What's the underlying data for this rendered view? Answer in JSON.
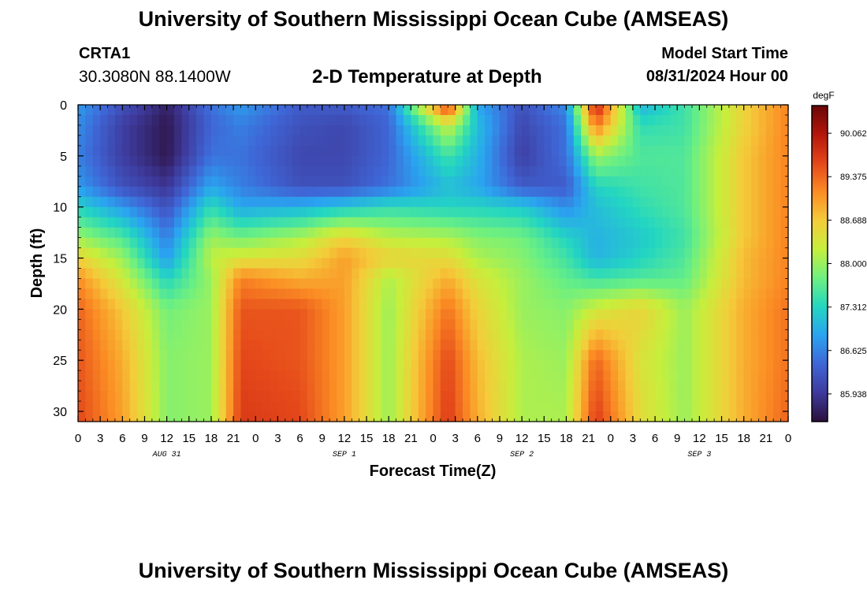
{
  "header": {
    "title": "University of Southern Mississippi Ocean Cube (AMSEAS)",
    "station_id": "CRTA1",
    "station_coords": "30.3080N  88.1400W",
    "plot_title": "2-D Temperature at Depth",
    "model_start_label": "Model Start Time",
    "model_start_value": "08/31/2024 Hour 00"
  },
  "footer": {
    "title": "University of Southern Mississippi Ocean Cube (AMSEAS)"
  },
  "colors": {
    "colormap": [
      "#2c0f3c",
      "#3e3a9c",
      "#3f66d6",
      "#2aa3f0",
      "#23d6c1",
      "#6ef080",
      "#c6ef3c",
      "#f4cc3a",
      "#fb8c24",
      "#e4471a",
      "#b3160b",
      "#6a0606"
    ]
  },
  "chart_data": {
    "type": "heatmap",
    "xlabel": "Forecast Time(Z)",
    "ylabel": "Depth (ft)",
    "colorbar_label": "degF",
    "x_range_hours": [
      0,
      96
    ],
    "y_range_ft": [
      0,
      31
    ],
    "x_tick_labels": [
      "0",
      "3",
      "6",
      "9",
      "12",
      "15",
      "18",
      "21",
      "0",
      "3",
      "6",
      "9",
      "12",
      "15",
      "18",
      "21",
      "0",
      "3",
      "6",
      "9",
      "12",
      "15",
      "18",
      "21",
      "0",
      "3",
      "6",
      "9",
      "12",
      "15",
      "18",
      "21",
      "0"
    ],
    "date_labels": [
      {
        "label": "AUG 31",
        "hour": 12
      },
      {
        "label": "SEP 1",
        "hour": 36
      },
      {
        "label": "SEP 2",
        "hour": 60
      },
      {
        "label": "SEP 3",
        "hour": 84
      }
    ],
    "y_ticks": [
      0,
      5,
      10,
      15,
      20,
      25,
      30
    ],
    "colorbar_min": 85.5,
    "colorbar_max": 90.5,
    "colorbar_ticks": [
      "90.062",
      "89.375",
      "88.688",
      "88.000",
      "87.312",
      "86.625",
      "85.938"
    ],
    "colorbar_tick_values": [
      90.062,
      89.375,
      88.688,
      88.0,
      87.312,
      86.625,
      85.938
    ],
    "x_hours": [
      0,
      6,
      12,
      18,
      22,
      30,
      36,
      42,
      50,
      54,
      60,
      66,
      70,
      76,
      82,
      90,
      96
    ],
    "depths_ft": [
      0,
      2,
      5,
      8,
      10,
      13,
      15,
      17,
      20,
      25,
      31
    ],
    "temperatures_degF": [
      [
        86.8,
        86.2,
        85.7,
        86.5,
        86.8,
        86.3,
        86.3,
        86.5,
        89.8,
        86.9,
        86.2,
        86.7,
        90.0,
        87.0,
        87.5,
        88.6,
        89.2
      ],
      [
        86.7,
        86.0,
        85.6,
        86.4,
        86.6,
        86.2,
        86.1,
        86.4,
        88.3,
        87.1,
        86.1,
        86.5,
        89.3,
        87.4,
        87.5,
        88.6,
        89.2
      ],
      [
        86.6,
        86.0,
        85.6,
        86.5,
        86.5,
        86.1,
        86.1,
        86.4,
        87.5,
        87.0,
        86.0,
        86.5,
        88.0,
        87.6,
        87.6,
        88.7,
        89.2
      ],
      [
        86.8,
        86.2,
        85.9,
        86.9,
        86.6,
        86.2,
        86.2,
        86.5,
        87.1,
        86.9,
        86.3,
        86.3,
        87.3,
        87.5,
        87.6,
        88.7,
        89.2
      ],
      [
        87.3,
        86.8,
        86.2,
        87.4,
        86.9,
        87.0,
        87.2,
        87.4,
        87.3,
        87.3,
        87.2,
        86.7,
        87.1,
        87.4,
        87.6,
        88.7,
        89.2
      ],
      [
        88.0,
        87.6,
        86.6,
        88.0,
        87.8,
        88.1,
        88.6,
        88.2,
        88.1,
        87.9,
        87.8,
        87.3,
        87.0,
        87.2,
        87.5,
        88.7,
        89.2
      ],
      [
        88.6,
        88.0,
        86.8,
        88.2,
        88.4,
        88.5,
        89.0,
        88.6,
        88.5,
        88.1,
        87.9,
        87.5,
        87.0,
        87.3,
        87.6,
        88.8,
        89.2
      ],
      [
        89.1,
        88.3,
        87.3,
        88.0,
        89.2,
        88.9,
        89.0,
        88.1,
        88.9,
        88.4,
        88.0,
        87.7,
        87.5,
        87.6,
        87.7,
        88.8,
        89.2
      ],
      [
        89.4,
        88.7,
        87.8,
        88.0,
        89.5,
        89.5,
        89.0,
        88.0,
        89.3,
        88.6,
        88.0,
        87.9,
        88.3,
        88.6,
        88.0,
        88.9,
        89.3
      ],
      [
        89.5,
        88.9,
        87.9,
        88.0,
        89.6,
        89.5,
        89.0,
        88.0,
        89.6,
        88.8,
        88.1,
        88.0,
        89.4,
        88.4,
        88.0,
        88.9,
        89.3
      ],
      [
        89.6,
        89.0,
        87.9,
        88.0,
        89.7,
        89.6,
        89.0,
        88.0,
        89.7,
        88.9,
        88.1,
        88.1,
        89.7,
        88.5,
        88.0,
        88.9,
        89.4
      ]
    ]
  }
}
